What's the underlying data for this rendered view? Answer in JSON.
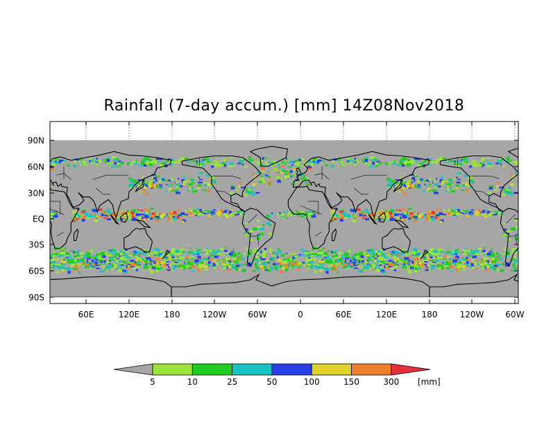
{
  "title": "Rainfall (7-day accum.) [mm] 14Z08Nov2018",
  "x_ticks": [
    "60E",
    "120E",
    "180",
    "120W",
    "60W",
    "0",
    "60E",
    "120E",
    "180",
    "120W",
    "60W"
  ],
  "y_ticks": [
    "90N",
    "60N",
    "30N",
    "EQ",
    "30S",
    "60S",
    "90S"
  ],
  "colorbar": {
    "labels": [
      "5",
      "10",
      "25",
      "50",
      "100",
      "150",
      "300"
    ],
    "unit": "[mm]",
    "colors": [
      "#a6a6a6",
      "#9be53a",
      "#1fcc1f",
      "#17c3c3",
      "#2a3fe6",
      "#e0d12e",
      "#ef7d2b",
      "#e8303a"
    ]
  },
  "colors": {
    "ocean": "#a6a6a6",
    "coast": "#000000",
    "background": "#ffffff"
  }
}
